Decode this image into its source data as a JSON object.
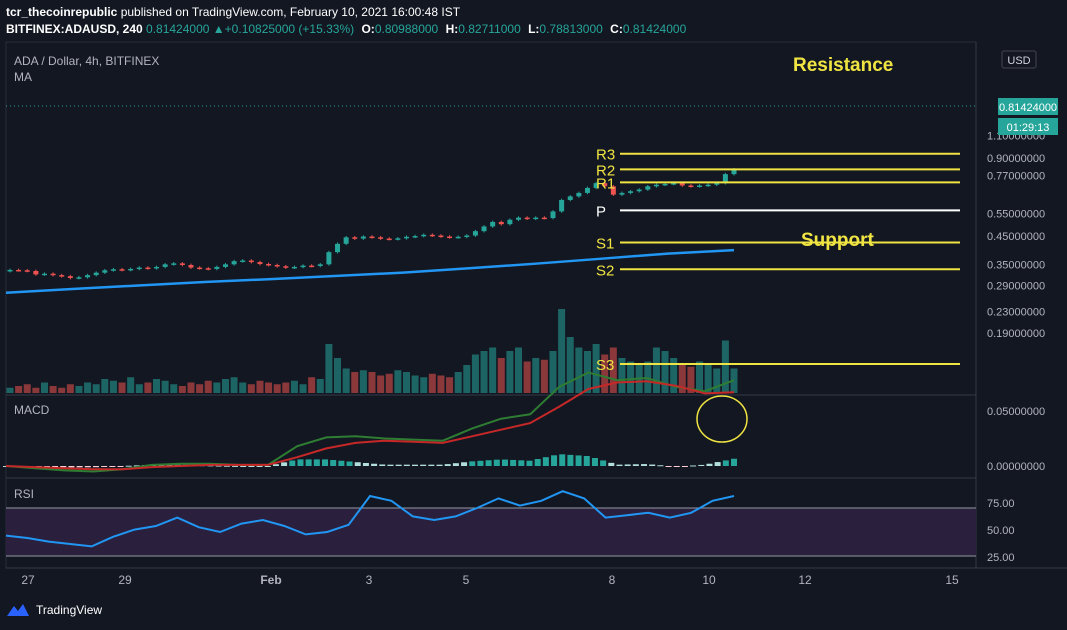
{
  "header": {
    "user": "tcr_thecoinrepublic",
    "published_text": "published on TradingView.com, February 10, 2021 16:00:48 IST",
    "symbol": "BITFINEX:ADAUSD, 240",
    "last": "0.81424000",
    "change": "+0.10825000 (+15.33%)",
    "change_arrow": "▲",
    "o_label": "O:",
    "o_value": "0.80988000",
    "h_label": "H:",
    "h_value": "0.82711000",
    "l_label": "L:",
    "l_value": "0.78813000",
    "c_label": "C:",
    "c_value": "0.81424000"
  },
  "panes": {
    "main_title": "ADA / Dollar, 4h, BITFINEX",
    "main_indicator": "MA",
    "macd_label": "MACD",
    "rsi_label": "RSI"
  },
  "currency_button": "USD",
  "price_badge": "0.81424000",
  "countdown_badge": "01:29:13",
  "footer": {
    "brand": "TradingView"
  },
  "annotations": {
    "resistance_label": "Resistance",
    "support_label": "Support",
    "pivot_color": "#ffffff",
    "level_color": "#f0e442"
  },
  "colors": {
    "background": "#131722",
    "up": "#26a69a",
    "down": "#ef5350",
    "ma": "#2196f3",
    "macd": "#2e7d32",
    "signal": "#c62828",
    "rsi": "#2196f3",
    "rsi_band": "#2a1f3d"
  },
  "chart_data": [
    {
      "type": "candlestick",
      "title": "ADA / Dollar, 4h, BITFINEX",
      "x_ticks": [
        "27",
        "29",
        "Feb",
        "3",
        "5",
        "8",
        "10",
        "12",
        "15"
      ],
      "y_ticks": [
        "1.10000000",
        "0.90000000",
        "0.77000000",
        "0.55000000",
        "0.45000000",
        "0.35000000",
        "0.29000000",
        "0.23000000",
        "0.19000000"
      ],
      "y_scale": "log",
      "series": [
        {
          "name": "MA",
          "values": [
            0.272,
            0.281,
            0.29,
            0.299,
            0.307,
            0.316,
            0.325,
            0.338,
            0.352,
            0.368,
            0.385,
            0.397
          ]
        }
      ],
      "close": [
        0.333,
        0.332,
        0.33,
        0.32,
        0.322,
        0.318,
        0.315,
        0.31,
        0.312,
        0.318,
        0.325,
        0.332,
        0.335,
        0.333,
        0.336,
        0.34,
        0.338,
        0.342,
        0.35,
        0.353,
        0.348,
        0.34,
        0.338,
        0.336,
        0.342,
        0.35,
        0.36,
        0.362,
        0.357,
        0.351,
        0.348,
        0.344,
        0.34,
        0.342,
        0.346,
        0.345,
        0.35,
        0.39,
        0.42,
        0.445,
        0.44,
        0.448,
        0.445,
        0.44,
        0.438,
        0.441,
        0.447,
        0.45,
        0.455,
        0.452,
        0.448,
        0.445,
        0.447,
        0.452,
        0.47,
        0.49,
        0.51,
        0.5,
        0.52,
        0.53,
        0.525,
        0.53,
        0.528,
        0.56,
        0.62,
        0.64,
        0.66,
        0.69,
        0.72,
        0.7,
        0.65,
        0.66,
        0.67,
        0.68,
        0.7,
        0.71,
        0.715,
        0.72,
        0.705,
        0.7,
        0.705,
        0.71,
        0.72,
        0.78,
        0.814
      ],
      "levels": [
        {
          "name": "R3",
          "value": 0.935
        },
        {
          "name": "R2",
          "value": 0.814
        },
        {
          "name": "R1",
          "value": 0.725
        },
        {
          "name": "P",
          "value": 0.565
        },
        {
          "name": "S1",
          "value": 0.425
        },
        {
          "name": "S2",
          "value": 0.335
        },
        {
          "name": "S3",
          "value": 0.193
        }
      ],
      "level_names": [
        "R3",
        "R2",
        "R1",
        "P",
        "S1",
        "S2",
        "S3"
      ],
      "volume": [
        3,
        4,
        5,
        3,
        6,
        4,
        3,
        5,
        4,
        6,
        5,
        8,
        7,
        6,
        9,
        5,
        6,
        8,
        7,
        5,
        4,
        6,
        5,
        7,
        6,
        8,
        9,
        6,
        5,
        7,
        6,
        5,
        6,
        7,
        5,
        9,
        8,
        28,
        20,
        14,
        12,
        13,
        12,
        10,
        11,
        13,
        12,
        10,
        9,
        11,
        10,
        9,
        12,
        16,
        22,
        24,
        26,
        20,
        24,
        26,
        18,
        20,
        19,
        24,
        48,
        32,
        26,
        24,
        28,
        22,
        26,
        20,
        18,
        16,
        18,
        26,
        24,
        20,
        16,
        15,
        18,
        16,
        14,
        30,
        14
      ]
    },
    {
      "type": "line",
      "title": "MACD",
      "y_ticks": [
        "0.05000000",
        "0.00000000"
      ],
      "series": [
        {
          "name": "MACD",
          "values": [
            0.0,
            -0.002,
            -0.004,
            -0.005,
            -0.003,
            0.001,
            0.002,
            0.002,
            0.001,
            0.001,
            0.018,
            0.026,
            0.027,
            0.025,
            0.024,
            0.023,
            0.034,
            0.043,
            0.047,
            0.072,
            0.085,
            0.078,
            0.08,
            0.072,
            0.068,
            0.078
          ]
        },
        {
          "name": "Signal",
          "values": [
            0.0,
            -0.001,
            -0.002,
            -0.003,
            -0.003,
            -0.001,
            0.0,
            0.001,
            0.001,
            0.001,
            0.008,
            0.016,
            0.021,
            0.023,
            0.022,
            0.021,
            0.027,
            0.033,
            0.039,
            0.054,
            0.07,
            0.076,
            0.077,
            0.073,
            0.066,
            0.067
          ]
        }
      ]
    },
    {
      "type": "line",
      "title": "RSI",
      "y_ticks": [
        "75.00",
        "50.00",
        "25.00"
      ],
      "band": [
        30,
        70
      ],
      "series": [
        {
          "name": "RSI",
          "values": [
            47,
            45,
            42,
            40,
            38,
            46,
            52,
            55,
            62,
            54,
            50,
            57,
            60,
            55,
            48,
            50,
            56,
            80,
            76,
            63,
            60,
            63,
            70,
            78,
            72,
            76,
            84,
            78,
            62,
            64,
            66,
            62,
            66,
            76,
            80
          ]
        }
      ]
    }
  ]
}
